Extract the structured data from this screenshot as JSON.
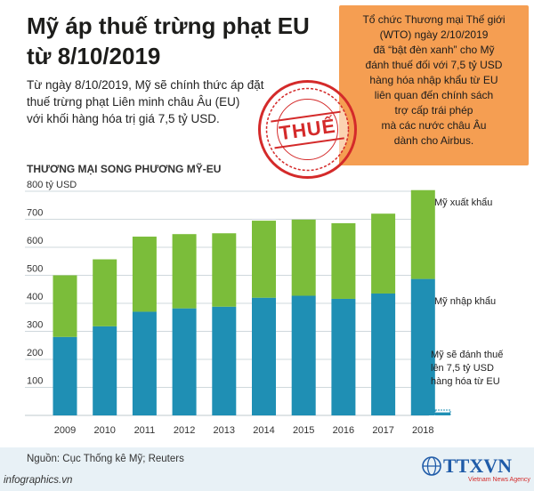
{
  "header": {
    "title_line1": "Mỹ áp thuế trừng phạt EU",
    "title_line2": "từ 8/10/2019",
    "intro_line1": "Từ ngày 8/10/2019, Mỹ sẽ chính thức áp đặt",
    "intro_line2": "thuế trừng phạt Liên minh châu Âu (EU)",
    "intro_line3": "với khối hàng hóa trị giá 7,5 tỷ USD."
  },
  "callout": {
    "lines": [
      "Tổ chức Thương mại Thế giới",
      "(WTO) ngày 2/10/2019",
      "đã “bật đèn xanh” cho Mỹ",
      "đánh thuế đối với 7,5 tỷ USD",
      "hàng hóa nhập khẩu từ EU",
      "liên quan đến chính sách",
      "trợ cấp trái phép",
      "mà các nước châu Âu",
      "dành cho Airbus."
    ]
  },
  "stamp": {
    "label": "THUẾ"
  },
  "chart_data": {
    "type": "bar",
    "stacked": true,
    "title": "THƯƠNG MẠI SONG PHƯƠNG MỸ-EU",
    "unit_label": "800 tỷ USD",
    "categories": [
      "2009",
      "2010",
      "2011",
      "2012",
      "2013",
      "2014",
      "2015",
      "2016",
      "2017",
      "2018"
    ],
    "y_ticks": [
      "800 tỷ USD",
      "700",
      "600",
      "500",
      "400",
      "300",
      "200",
      "100"
    ],
    "ylim": [
      0,
      800
    ],
    "grid": true,
    "series": [
      {
        "name": "Mỹ nhập khẩu",
        "color": "#1f8fb4",
        "values": [
          280,
          318,
          370,
          382,
          388,
          420,
          427,
          416,
          435,
          487
        ]
      },
      {
        "name": "Mỹ xuất khẩu",
        "color": "#7bbd3a",
        "values": [
          220,
          239,
          268,
          265,
          262,
          275,
          272,
          270,
          285,
          317
        ]
      }
    ],
    "annotations": {
      "export_label": "Mỹ xuất khẩu",
      "import_label": "Mỹ nhập khẩu",
      "tariff_line1": "Mỹ sẽ đánh thuế",
      "tariff_line2": "lên 7,5 tỷ USD",
      "tariff_line3": "hàng hóa từ EU",
      "tariff_value": 7.5,
      "tariff_color": "#1f8fb4"
    }
  },
  "footer": {
    "source": "Nguồn: Cục Thống kê Mỹ; Reuters",
    "site": "infographics.vn",
    "logo_text": "TTXVN",
    "logo_sub": "Vietnam News Agency"
  }
}
